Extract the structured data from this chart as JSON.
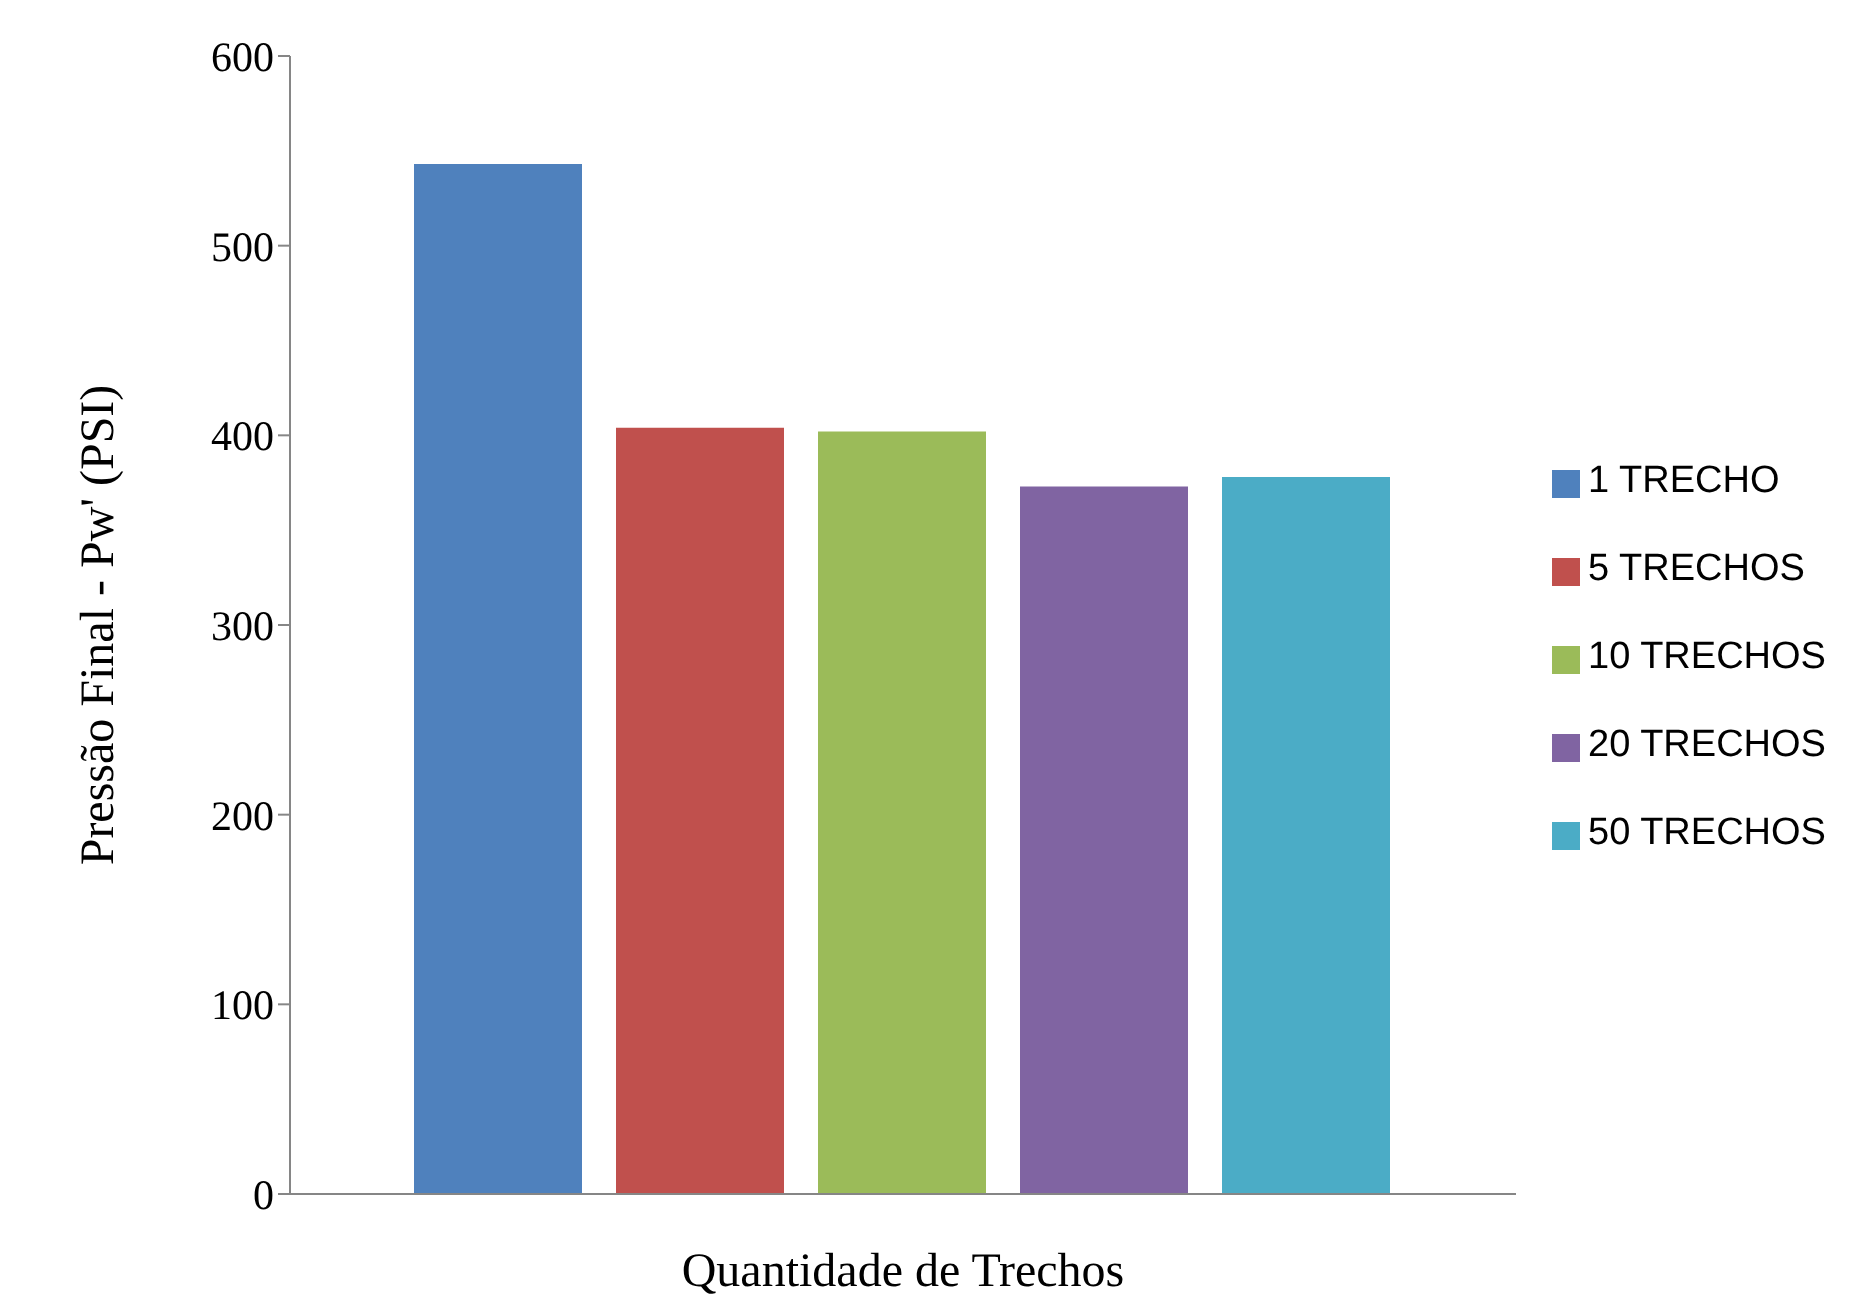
{
  "chart_data": {
    "type": "bar",
    "ylabel": "Pressão Final - Pw' (PSI)",
    "xlabel": "Quantidade de Trechos",
    "categories": [
      null
    ],
    "series": [
      {
        "name": "1 TRECHO",
        "color": "#4f81bd",
        "values": [
          543
        ]
      },
      {
        "name": "5 TRECHOS",
        "color": "#c0504d",
        "values": [
          404
        ]
      },
      {
        "name": "10 TRECHOS",
        "color": "#9bbb59",
        "values": [
          402
        ]
      },
      {
        "name": "20 TRECHOS",
        "color": "#8064a2",
        "values": [
          373
        ]
      },
      {
        "name": "50 TRECHOS",
        "color": "#4bacc6",
        "values": [
          378
        ]
      }
    ],
    "ylim": [
      0,
      600
    ],
    "yticks": [
      0,
      100,
      200,
      300,
      400,
      500,
      600
    ],
    "grid": false,
    "legend": "right"
  }
}
